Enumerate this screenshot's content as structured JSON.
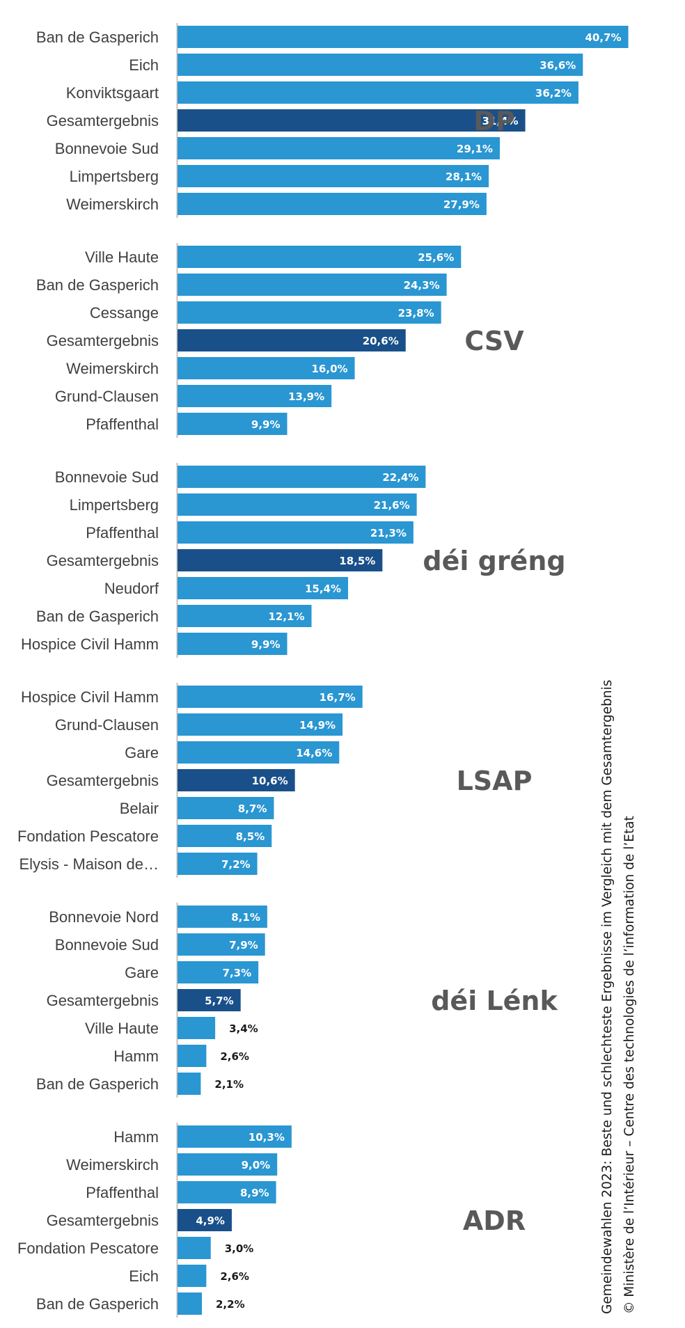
{
  "colors": {
    "bar": "#2a96d2",
    "total_bar": "#1a508a",
    "axis": "#bfbfbf",
    "label": "#404040",
    "party": "#595959"
  },
  "side_text": {
    "line1": "Gemeindewahlen 2023: Beste und schlechteste Ergebnisse im Vergleich mit dem Gesamtergebnis",
    "line2": "© Ministère de l’Intérieur – Centre des technologies de l’information de l’Etat"
  },
  "chart_data": [
    {
      "type": "bar",
      "orientation": "horizontal",
      "party": "DP",
      "categories": [
        "Ban de Gasperich",
        "Eich",
        "Konviktsgaart",
        "Gesamtergebnis",
        "Bonnevoie Sud",
        "Limpertsberg",
        "Weimerskirch"
      ],
      "values": [
        40.7,
        36.6,
        36.2,
        31.4,
        29.1,
        28.1,
        27.9
      ],
      "value_labels": [
        "40,7%",
        "36,6%",
        "36,2%",
        "31,4%",
        "29,1%",
        "28,1%",
        "27,9%"
      ],
      "highlight_index": 3
    },
    {
      "type": "bar",
      "orientation": "horizontal",
      "party": "CSV",
      "categories": [
        "Ville Haute",
        "Ban de Gasperich",
        "Cessange",
        "Gesamtergebnis",
        "Weimerskirch",
        "Grund-Clausen",
        "Pfaffenthal"
      ],
      "values": [
        25.6,
        24.3,
        23.8,
        20.6,
        16.0,
        13.9,
        9.9
      ],
      "value_labels": [
        "25,6%",
        "24,3%",
        "23,8%",
        "20,6%",
        "16,0%",
        "13,9%",
        "9,9%"
      ],
      "highlight_index": 3
    },
    {
      "type": "bar",
      "orientation": "horizontal",
      "party": "déi gréng",
      "categories": [
        "Bonnevoie Sud",
        "Limpertsberg",
        "Pfaffenthal",
        "Gesamtergebnis",
        "Neudorf",
        "Ban de Gasperich",
        "Hospice Civil Hamm"
      ],
      "values": [
        22.4,
        21.6,
        21.3,
        18.5,
        15.4,
        12.1,
        9.9
      ],
      "value_labels": [
        "22,4%",
        "21,6%",
        "21,3%",
        "18,5%",
        "15,4%",
        "12,1%",
        "9,9%"
      ],
      "highlight_index": 3
    },
    {
      "type": "bar",
      "orientation": "horizontal",
      "party": "LSAP",
      "categories": [
        "Hospice Civil Hamm",
        "Grund-Clausen",
        "Gare",
        "Gesamtergebnis",
        "Belair",
        "Fondation Pescatore",
        "Elysis - Maison de…"
      ],
      "values": [
        16.7,
        14.9,
        14.6,
        10.6,
        8.7,
        8.5,
        7.2
      ],
      "value_labels": [
        "16,7%",
        "14,9%",
        "14,6%",
        "10,6%",
        "8,7%",
        "8,5%",
        "7,2%"
      ],
      "highlight_index": 3
    },
    {
      "type": "bar",
      "orientation": "horizontal",
      "party": "déi Lénk",
      "categories": [
        "Bonnevoie Nord",
        "Bonnevoie Sud",
        "Gare",
        "Gesamtergebnis",
        "Ville Haute",
        "Hamm",
        "Ban de Gasperich"
      ],
      "values": [
        8.1,
        7.9,
        7.3,
        5.7,
        3.4,
        2.6,
        2.1
      ],
      "value_labels": [
        "8,1%",
        "7,9%",
        "7,3%",
        "5,7%",
        "3,4%",
        "2,6%",
        "2,1%"
      ],
      "highlight_index": 3
    },
    {
      "type": "bar",
      "orientation": "horizontal",
      "party": "ADR",
      "categories": [
        "Hamm",
        "Weimerskirch",
        "Pfaffenthal",
        "Gesamtergebnis",
        "Fondation Pescatore",
        "Eich",
        "Ban de Gasperich"
      ],
      "values": [
        10.3,
        9.0,
        8.9,
        4.9,
        3.0,
        2.6,
        2.2
      ],
      "value_labels": [
        "10,3%",
        "9,0%",
        "8,9%",
        "4,9%",
        "3,0%",
        "2,6%",
        "2,2%"
      ],
      "highlight_index": 3
    }
  ]
}
